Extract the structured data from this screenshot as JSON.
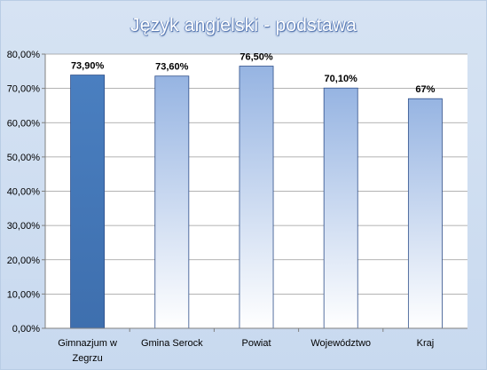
{
  "chart_data": {
    "type": "bar",
    "title": "Język angielski - podstawa",
    "categories": [
      "Gimnazjum w\nZegrzu",
      "Gmina Serock",
      "Powiat",
      "Województwo",
      "Kraj"
    ],
    "values": [
      73.9,
      73.6,
      76.5,
      70.1,
      67.0
    ],
    "data_labels": [
      "73,90%",
      "73,60%",
      "76,50%",
      "70,10%",
      "67%"
    ],
    "yticks": [
      "0,00%",
      "10,00%",
      "20,00%",
      "30,00%",
      "40,00%",
      "50,00%",
      "60,00%",
      "70,00%",
      "80,00%"
    ],
    "ylim": [
      0,
      80
    ],
    "grid": true,
    "legend": "none",
    "colors": {
      "highlight_top": "#4a7fc0",
      "highlight_bottom": "#3e6fae",
      "bar_top": "#96b4e2",
      "bar_bottom": "#ffffff",
      "bar_stroke": "#2f4f8a",
      "plot_bg": "#ffffff",
      "grid": "#9a9a9a"
    }
  }
}
